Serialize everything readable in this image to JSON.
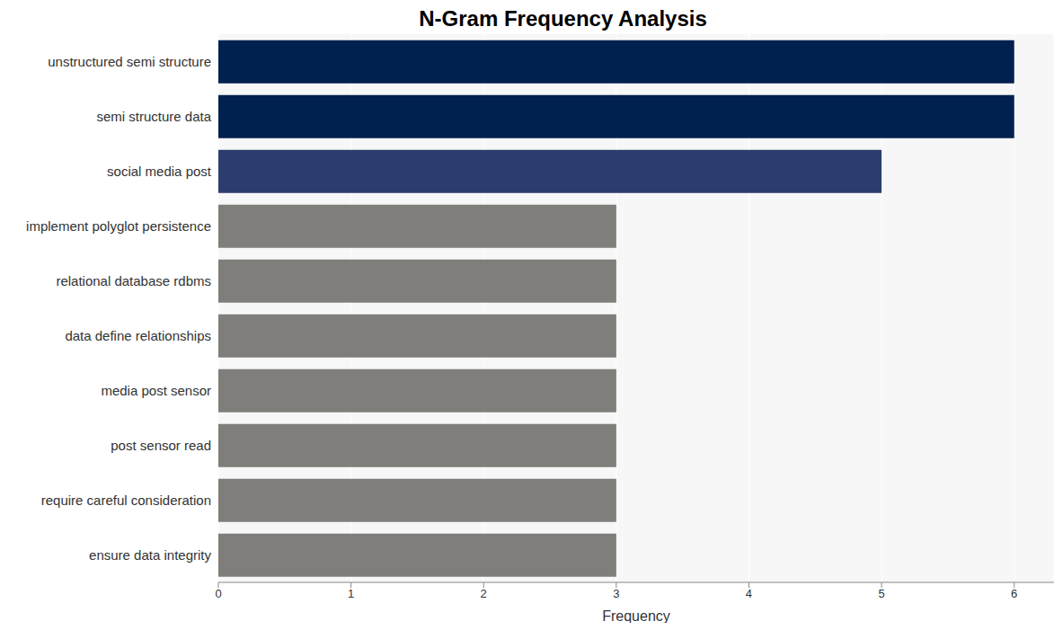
{
  "chart_data": {
    "type": "bar",
    "orientation": "horizontal",
    "title": "N-Gram Frequency Analysis",
    "x_label": "Frequency",
    "categories": [
      "unstructured semi structure",
      "semi structure data",
      "social media post",
      "implement polyglot persistence",
      "relational database rdbms",
      "data define relationships",
      "media post sensor",
      "post sensor read",
      "require careful consideration",
      "ensure data integrity"
    ],
    "values": [
      6,
      6,
      5,
      3,
      3,
      3,
      3,
      3,
      3,
      3
    ],
    "colors": [
      "#00204f",
      "#00204f",
      "#2b3d6e",
      "#7f7e7a",
      "#7f7e7a",
      "#7f7e7a",
      "#7f7e7a",
      "#7f7e7a",
      "#7f7e7a",
      "#7f7e7a"
    ],
    "xlim": [
      0,
      6.3
    ],
    "xticks": [
      0,
      1,
      2,
      3,
      4,
      5,
      6
    ],
    "grid": true
  }
}
